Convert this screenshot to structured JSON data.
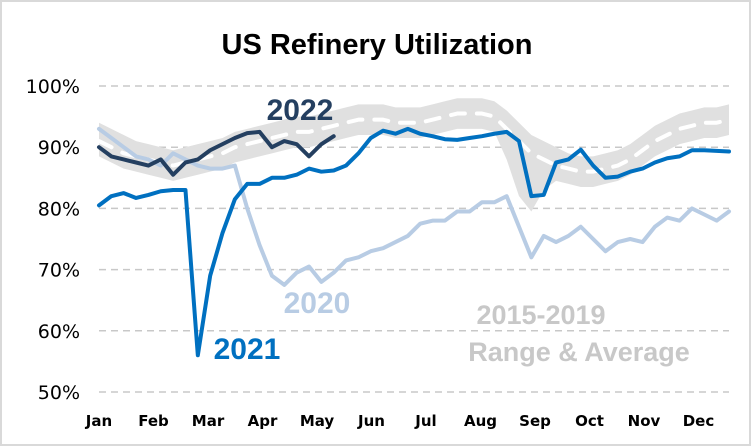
{
  "chart_data": {
    "type": "line",
    "title": "US Refinery Utilization",
    "xlabel": "",
    "ylabel": "",
    "ylim": [
      50,
      100
    ],
    "y_ticks": [
      "100%",
      "90%",
      "80%",
      "70%",
      "60%",
      "50%"
    ],
    "y_tick_values": [
      100,
      90,
      80,
      70,
      60,
      50
    ],
    "x_unit": "week of year",
    "x_ticks": [
      "Jan",
      "Feb",
      "Mar",
      "Apr",
      "May",
      "Jun",
      "Jul",
      "Aug",
      "Sep",
      "Oct",
      "Nov",
      "Dec"
    ],
    "grid": "horizontal dashed",
    "colors": {
      "s2022": "#243f60",
      "s2021": "#0070c0",
      "s2020": "#b8cce4",
      "range": "#e0e0e0",
      "average": "#ffffff",
      "range_label": "#c8c8c8"
    },
    "labels": {
      "s2022": "2022",
      "s2021": "2021",
      "s2020": "2020",
      "range_line1": "2015-2019",
      "range_line2": "Range & Average"
    },
    "series": [
      {
        "name": "2020",
        "values": [
          93,
          91.5,
          90,
          88.5,
          88,
          87,
          89,
          88,
          87,
          86.5,
          86.5,
          87,
          80,
          74,
          69,
          67.5,
          69.5,
          70.5,
          68,
          69.5,
          71.5,
          72,
          73,
          73.5,
          74.5,
          75.5,
          77.5,
          78,
          78,
          79.5,
          79.5,
          81,
          81,
          82,
          77,
          72,
          75.5,
          74.5,
          75.5,
          77,
          75,
          73,
          74.5,
          75,
          74.5,
          77,
          78.5,
          78,
          80,
          79,
          78,
          79.5
        ]
      },
      {
        "name": "2021",
        "values": [
          80.5,
          82,
          82.5,
          81.7,
          82.2,
          82.8,
          83,
          83,
          56,
          69,
          76,
          81.5,
          84,
          84,
          85,
          85,
          85.5,
          86.5,
          86,
          86.2,
          87,
          89,
          91.5,
          92.7,
          92.2,
          93,
          92.2,
          91.8,
          91.3,
          91.2,
          91.5,
          91.8,
          92.2,
          92.5,
          91,
          82,
          82.2,
          87.5,
          88,
          89.6,
          87,
          85,
          85.2,
          86,
          86.5,
          87.5,
          88.2,
          88.5,
          89.5,
          89.5,
          89.4,
          89.3
        ]
      },
      {
        "name": "2022",
        "values": [
          90,
          88.5,
          88,
          87.5,
          87,
          88,
          85.5,
          87.5,
          88,
          89.5,
          90.5,
          91.5,
          92.3,
          92.5,
          90,
          91,
          90.5,
          88.5,
          90.5,
          91.8
        ]
      },
      {
        "name": "2015-2019 Average",
        "values": [
          91,
          90,
          89,
          88.5,
          88,
          87.5,
          87,
          87.5,
          88,
          88.5,
          89,
          90,
          90.5,
          91,
          91.5,
          92,
          92.5,
          92.5,
          93,
          93.5,
          94,
          94.5,
          94.5,
          94.5,
          94,
          94,
          94,
          94.5,
          95,
          95.5,
          95.5,
          95.5,
          95,
          93,
          91,
          89,
          88,
          87,
          86.5,
          86,
          86,
          86.5,
          87,
          88,
          89.5,
          91,
          92,
          93,
          93.5,
          94,
          94,
          94.5
        ]
      },
      {
        "name": "2015-2019 Range High",
        "values": [
          94,
          93,
          92,
          91,
          90.5,
          90,
          89.5,
          90,
          90.5,
          91,
          91.5,
          92.5,
          93,
          93.5,
          94,
          94.5,
          95,
          95,
          95.5,
          96,
          96.5,
          97,
          97,
          97,
          96.5,
          96.5,
          96.5,
          97,
          97.5,
          98,
          98,
          98,
          97.5,
          96,
          94,
          92,
          91,
          90,
          89,
          88.5,
          88.5,
          89,
          89.5,
          90.5,
          92,
          93.5,
          94.5,
          95.5,
          96,
          96.5,
          96.5,
          97
        ]
      },
      {
        "name": "2015-2019 Range Low",
        "values": [
          88.5,
          87.5,
          86.5,
          86,
          85.5,
          85,
          84.5,
          85,
          85.5,
          86,
          86.5,
          87.5,
          88,
          88.5,
          89,
          89.5,
          90,
          90,
          90.5,
          91,
          91.5,
          92,
          92,
          92,
          91.5,
          91.5,
          91.5,
          92,
          92.5,
          93,
          93,
          93,
          92.5,
          88,
          82,
          79.5,
          83,
          84.5,
          84,
          83.5,
          83.5,
          84,
          84.5,
          85.5,
          87,
          88.5,
          89.5,
          90.5,
          91,
          91.5,
          91.5,
          92
        ]
      }
    ]
  }
}
